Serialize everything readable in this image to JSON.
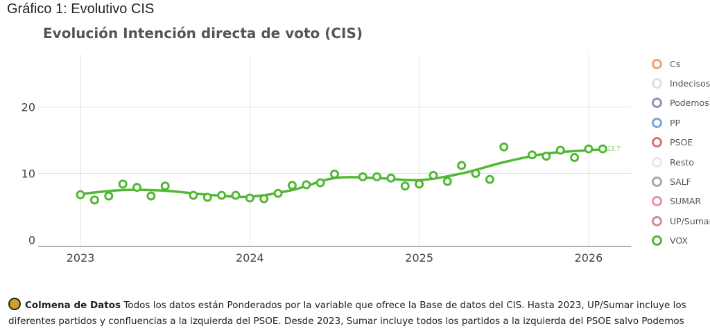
{
  "header": "Gráfico 1: Evolutivo CIS",
  "chart_data": {
    "type": "line",
    "title": "Evolución Intención directa de voto (CIS)",
    "xlabel": "",
    "ylabel": "",
    "xlim": [
      "2022-10",
      "2026-04"
    ],
    "ylim": [
      -1,
      28
    ],
    "x_ticks": [
      "2023",
      "2024",
      "2025",
      "2026"
    ],
    "y_ticks": [
      "0",
      "10",
      "20"
    ],
    "grid": true,
    "legend_position": "right",
    "series": [
      {
        "name": "VOX",
        "color": "#52b833",
        "x": [
          "2023-01",
          "2023-02",
          "2023-03",
          "2023-04",
          "2023-05",
          "2023-06",
          "2023-07",
          "2023-09",
          "2023-10",
          "2023-11",
          "2023-12",
          "2024-01",
          "2024-02",
          "2024-03",
          "2024-04",
          "2024-05",
          "2024-06",
          "2024-07",
          "2024-09",
          "2024-10",
          "2024-11",
          "2024-12",
          "2025-01",
          "2025-02",
          "2025-03",
          "2025-04",
          "2025-05",
          "2025-06",
          "2025-07",
          "2025-09",
          "2025-10",
          "2025-11",
          "2025-12",
          "2026-01",
          "2026-02"
        ],
        "values": [
          6.8,
          6.0,
          6.6,
          8.4,
          7.9,
          6.6,
          8.1,
          6.7,
          6.4,
          6.7,
          6.7,
          6.3,
          6.2,
          7.0,
          8.2,
          8.3,
          8.6,
          9.9,
          9.5,
          9.5,
          9.3,
          8.1,
          8.4,
          9.7,
          8.8,
          11.2,
          10.0,
          9.1,
          14.0,
          12.8,
          12.6,
          13.5,
          12.4,
          13.7,
          13.7
        ],
        "trend_x": [
          "2023-01",
          "2023-04",
          "2023-07",
          "2023-10",
          "2024-01",
          "2024-04",
          "2024-07",
          "2024-10",
          "2025-01",
          "2025-04",
          "2025-07",
          "2025-10",
          "2026-01",
          "2026-02"
        ],
        "trend": [
          6.9,
          7.5,
          7.4,
          6.8,
          6.5,
          7.5,
          9.3,
          9.3,
          9.0,
          10.0,
          11.7,
          13.0,
          13.5,
          13.6
        ],
        "last_label": "13.7"
      }
    ],
    "legend": [
      {
        "name": "Cs",
        "color": "#f0a070"
      },
      {
        "name": "Indecisos",
        "color": "#e0e0e0"
      },
      {
        "name": "Podemos",
        "color": "#a08cb0"
      },
      {
        "name": "PP",
        "color": "#7aa8d8"
      },
      {
        "name": "PSOE",
        "color": "#e07070"
      },
      {
        "name": "Resto",
        "color": "#e8e8e8"
      },
      {
        "name": "SALF",
        "color": "#b0a89c"
      },
      {
        "name": "SUMAR",
        "color": "#ea90b8"
      },
      {
        "name": "UP/Sumar",
        "color": "#c890a8"
      },
      {
        "name": "VOX",
        "color": "#52b833"
      }
    ]
  },
  "footer": {
    "brand": "Colmena de Datos",
    "text": "Todos los datos están Ponderados por la variable que ofrece la Base de datos del CIS. Hasta 2023, UP/Sumar incluye los diferentes partidos y confluencias a la izquierda del PSOE. Desde 2023, Sumar incluye todos los partidos a la izquierda del PSOE salvo Podemos"
  }
}
